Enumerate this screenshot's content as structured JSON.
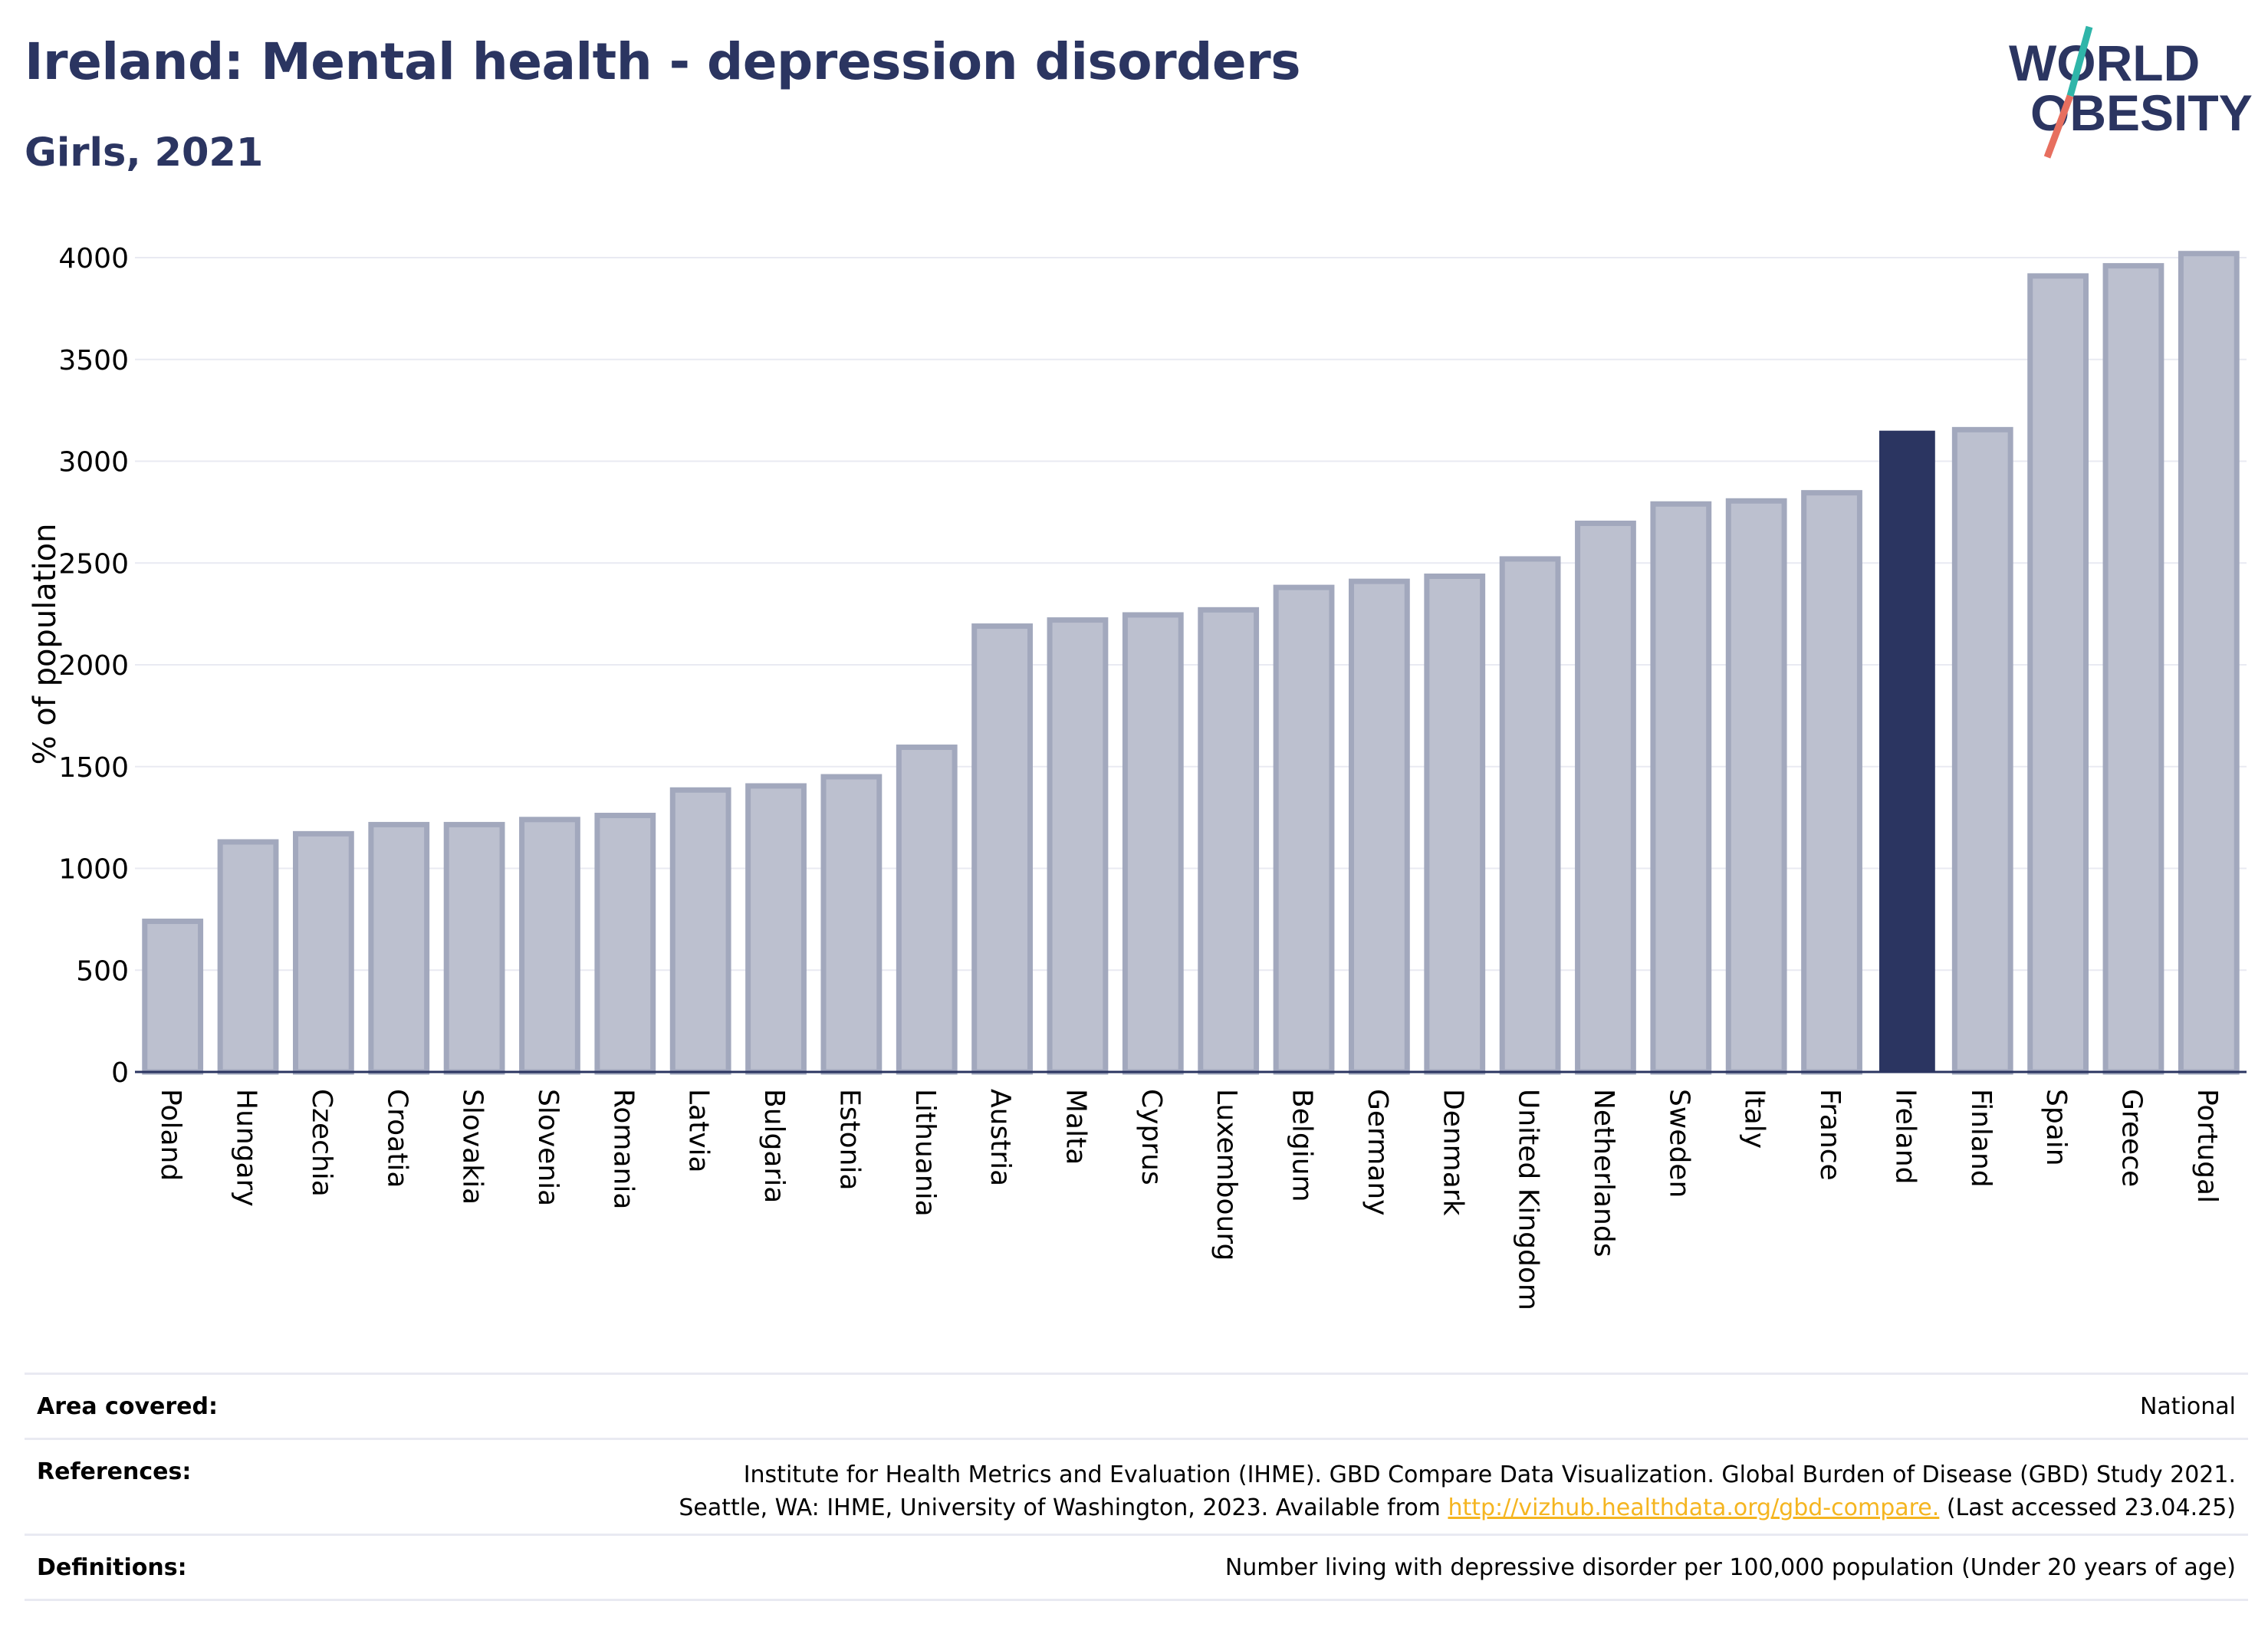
{
  "title": "Ireland: Mental health - depression disorders",
  "subtitle": "Girls, 2021",
  "logo": {
    "line1": "WORLD",
    "line2": "OBESITY"
  },
  "colors": {
    "bar": "#bcc0cf",
    "bar_edge": "#a2a8bd",
    "highlight": "#2b3561",
    "title": "#2b3561",
    "grid": "#e9eaf2",
    "logo_teal": "#2fb5a9",
    "logo_coral": "#e76f5f"
  },
  "chart_data": {
    "type": "bar",
    "title": "Ireland: Mental health - depression disorders",
    "subtitle": "Girls, 2021",
    "ylabel": "% of population",
    "xlabel": "",
    "ylim": [
      0,
      4100
    ],
    "yticks": [
      0,
      500,
      1000,
      1500,
      2000,
      2500,
      3000,
      3500,
      4000
    ],
    "grid": true,
    "highlight": "Ireland",
    "categories": [
      "Poland",
      "Hungary",
      "Czechia",
      "Croatia",
      "Slovakia",
      "Slovenia",
      "Romania",
      "Latvia",
      "Bulgaria",
      "Estonia",
      "Lithuania",
      "Austria",
      "Malta",
      "Cyprus",
      "Luxembourg",
      "Belgium",
      "Germany",
      "Denmark",
      "United Kingdom",
      "Netherlands",
      "Sweden",
      "Italy",
      "France",
      "Ireland",
      "Finland",
      "Spain",
      "Greece",
      "Portugal"
    ],
    "values": [
      740,
      1130,
      1170,
      1215,
      1215,
      1240,
      1260,
      1385,
      1405,
      1450,
      1595,
      2190,
      2220,
      2245,
      2270,
      2380,
      2410,
      2435,
      2520,
      2695,
      2790,
      2805,
      2845,
      3150,
      3155,
      3910,
      3960,
      4020
    ]
  },
  "footer": {
    "area_label": "Area covered:",
    "area_value": "National",
    "references_label": "References:",
    "references_line1": "Institute for Health Metrics and Evaluation (IHME). GBD Compare Data Visualization. Global Burden of Disease (GBD) Study 2021.",
    "references_line2_pre": "Seattle, WA: IHME, University of Washington, 2023. Available from ",
    "references_link": "http://vizhub.healthdata.org/gbd-compare.",
    "references_line2_post": " (Last accessed 23.04.25)",
    "definitions_label": "Definitions:",
    "definitions_value": "Number living with depressive disorder per 100,000 population (Under 20 years of age)"
  }
}
